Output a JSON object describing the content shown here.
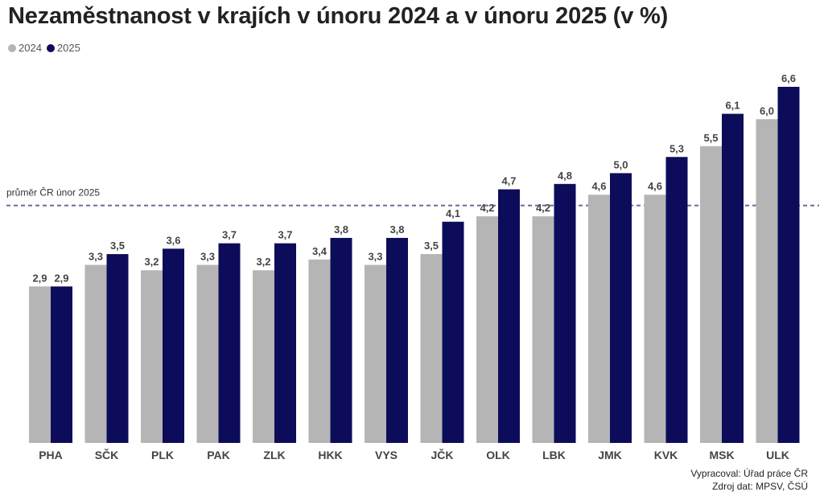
{
  "title": "Nezaměstnanost v krajích v únoru 2024 a v únoru 2025 (v %)",
  "legend": [
    {
      "name": "2024",
      "color": "#b5b5b5"
    },
    {
      "name": "2025",
      "color": "#0d0c5a"
    }
  ],
  "reference_line": {
    "label": "průměr ČR únor 2025",
    "value": 4.4,
    "color": "#6b6a9a"
  },
  "source": {
    "line1": "Vypracoval: Úřad práce ČR",
    "line2": "Zdroj dat: MPSV, ČSÚ"
  },
  "chart_data": {
    "type": "bar",
    "title": "Nezaměstnanost v krajích v únoru 2024 a v únoru 2025 (v %)",
    "categories": [
      "PHA",
      "SČK",
      "PLK",
      "PAK",
      "ZLK",
      "HKK",
      "VYS",
      "JČK",
      "OLK",
      "LBK",
      "JMK",
      "KVK",
      "MSK",
      "ULK"
    ],
    "series": [
      {
        "name": "2024",
        "values": [
          2.9,
          3.3,
          3.2,
          3.3,
          3.2,
          3.4,
          3.3,
          3.5,
          4.2,
          4.2,
          4.6,
          4.6,
          5.5,
          6.0
        ],
        "labels": [
          "2,9",
          "3,3",
          "3,2",
          "3,3",
          "3,2",
          "3,4",
          "3,3",
          "3,5",
          "4,2",
          "4,2",
          "4,6",
          "4,6",
          "5,5",
          "6,0"
        ]
      },
      {
        "name": "2025",
        "values": [
          2.9,
          3.5,
          3.6,
          3.7,
          3.7,
          3.8,
          3.8,
          4.1,
          4.7,
          4.8,
          5.0,
          5.3,
          6.1,
          6.6
        ],
        "labels": [
          "2,9",
          "3,5",
          "3,6",
          "3,7",
          "3,7",
          "3,8",
          "3,8",
          "4,1",
          "4,7",
          "4,8",
          "5,0",
          "5,3",
          "6,1",
          "6,6"
        ]
      }
    ],
    "ylim": [
      0,
      6.6
    ],
    "grid": false,
    "legend_position": "top-left"
  }
}
